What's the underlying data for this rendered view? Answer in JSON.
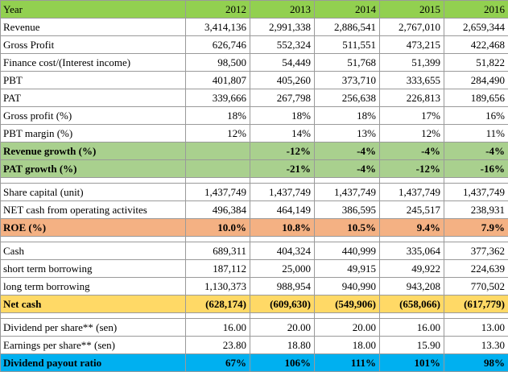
{
  "table": {
    "header": {
      "label": "Year",
      "years": [
        "2012",
        "2013",
        "2014",
        "2015",
        "2016"
      ]
    },
    "section1": [
      {
        "label": "Revenue",
        "values": [
          "3,414,136",
          "2,991,338",
          "2,886,541",
          "2,767,010",
          "2,659,344"
        ]
      },
      {
        "label": "Gross Profit",
        "values": [
          "626,746",
          "552,324",
          "511,551",
          "473,215",
          "422,468"
        ]
      },
      {
        "label": "Finance cost/(Interest income)",
        "values": [
          "98,500",
          "54,449",
          "51,768",
          "51,399",
          "51,822"
        ]
      },
      {
        "label": "PBT",
        "values": [
          "401,807",
          "405,260",
          "373,710",
          "333,655",
          "284,490"
        ]
      },
      {
        "label": "PAT",
        "values": [
          "339,666",
          "267,798",
          "256,638",
          "226,813",
          "189,656"
        ]
      },
      {
        "label": "Gross profit (%)",
        "values": [
          "18%",
          "18%",
          "18%",
          "17%",
          "16%"
        ]
      },
      {
        "label": "PBT margin (%)",
        "values": [
          "12%",
          "14%",
          "13%",
          "12%",
          "11%"
        ]
      }
    ],
    "revenue_growth": {
      "label": "Revenue growth (%)",
      "values": [
        "",
        "-12%",
        "-4%",
        "-4%",
        "-4%"
      ]
    },
    "pat_growth": {
      "label": "PAT growth (%)",
      "values": [
        "",
        "-21%",
        "-4%",
        "-12%",
        "-16%"
      ]
    },
    "section2": [
      {
        "label": "Share capital (unit)",
        "values": [
          "1,437,749",
          "1,437,749",
          "1,437,749",
          "1,437,749",
          "1,437,749"
        ]
      },
      {
        "label": "NET cash from operating activites",
        "values": [
          "496,384",
          "464,149",
          "386,595",
          "245,517",
          "238,931"
        ]
      }
    ],
    "roe": {
      "label": "ROE (%)",
      "values": [
        "10.0%",
        "10.8%",
        "10.5%",
        "9.4%",
        "7.9%"
      ]
    },
    "section3": [
      {
        "label": "Cash",
        "values": [
          "689,311",
          "404,324",
          "440,999",
          "335,064",
          "377,362"
        ]
      },
      {
        "label": "short term borrowing",
        "values": [
          "187,112",
          "25,000",
          "49,915",
          "49,922",
          "224,639"
        ]
      },
      {
        "label": "long term borrowing",
        "values": [
          "1,130,373",
          "988,954",
          "940,990",
          "943,208",
          "770,502"
        ]
      }
    ],
    "net_cash": {
      "label": "Net cash",
      "values": [
        "(628,174)",
        "(609,630)",
        "(549,906)",
        "(658,066)",
        "(617,779)"
      ]
    },
    "section4": [
      {
        "label": "Dividend per share** (sen)",
        "values": [
          "16.00",
          "20.00",
          "20.00",
          "16.00",
          "13.00"
        ]
      },
      {
        "label": "Earnings per share** (sen)",
        "values": [
          "23.80",
          "18.80",
          "18.00",
          "15.90",
          "13.30"
        ]
      }
    ],
    "payout": {
      "label": "Dividend payout ratio",
      "values": [
        "67%",
        "106%",
        "111%",
        "101%",
        "98%"
      ]
    },
    "colors": {
      "header_green": "#92d050",
      "growth_green": "#a9d08e",
      "roe_orange": "#f4b183",
      "net_cash_yellow": "#ffd966",
      "payout_blue": "#00b0f0"
    }
  }
}
